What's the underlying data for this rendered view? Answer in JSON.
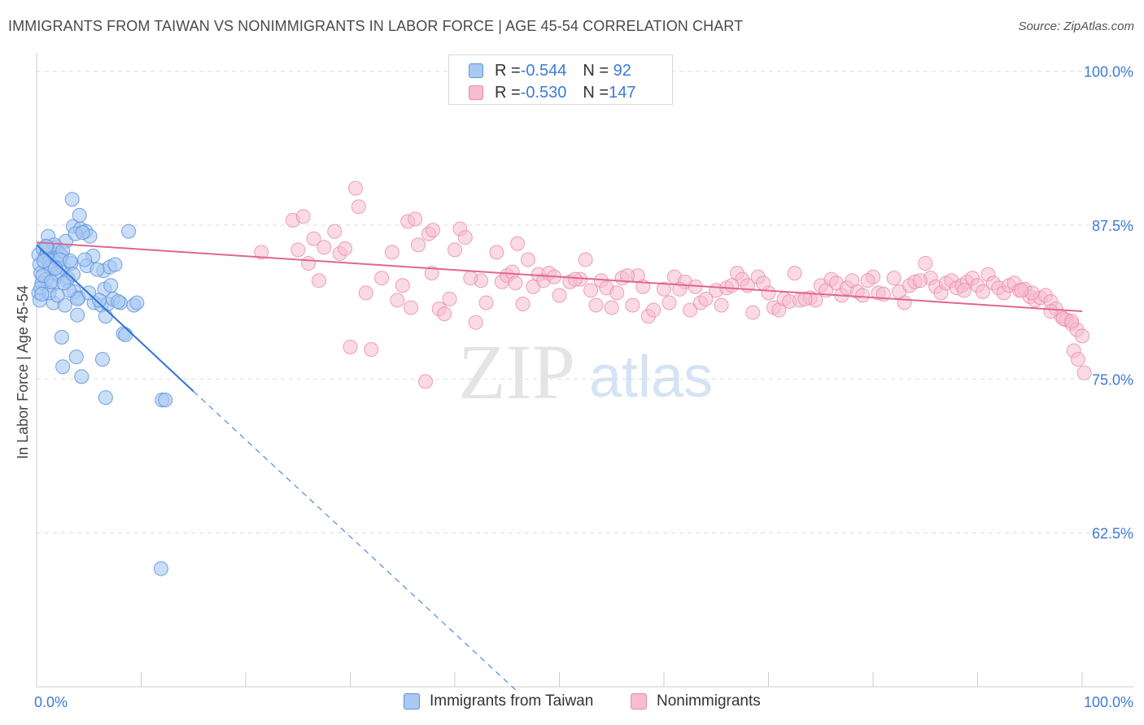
{
  "title": "IMMIGRANTS FROM TAIWAN VS NONIMMIGRANTS IN LABOR FORCE | AGE 45-54 CORRELATION CHART",
  "source": "Source: ZipAtlas.com",
  "watermark": {
    "zip": "ZIP",
    "atlas": "atlas"
  },
  "colors": {
    "blue_fill": "#a9c8f2",
    "blue_stroke": "#5b93dd",
    "blue_line": "#2f74d6",
    "pink_fill": "#f6bcd0",
    "pink_stroke": "#e88aab",
    "pink_line": "#e06690",
    "axis_label": "#3d7bd8"
  },
  "legend": {
    "rows": [
      {
        "r_label": "R = ",
        "r_value": "-0.544",
        "n_label": "N = ",
        "n_value": " 92"
      },
      {
        "r_label": "R = ",
        "r_value": "-0.530",
        "n_label": "N = ",
        "n_value": "147"
      }
    ]
  },
  "bottom_legend": {
    "series1": "Immigrants from Taiwan",
    "series2": "Nonimmigrants"
  },
  "chart_data": {
    "type": "scatter",
    "title": "IMMIGRANTS FROM TAIWAN VS NONIMMIGRANTS IN LABOR FORCE | AGE 45-54 CORRELATION CHART",
    "xlabel": "",
    "ylabel": "In Labor Force | Age 45-54",
    "xlim": [
      0,
      100
    ],
    "ylim": [
      50,
      101.5
    ],
    "x_tick_labels": [
      {
        "value": 0,
        "label": "0.0%"
      },
      {
        "value": 100,
        "label": "100.0%"
      }
    ],
    "y_tick_labels": [
      {
        "value": 100,
        "label": "100.0%"
      },
      {
        "value": 87.5,
        "label": "87.5%"
      },
      {
        "value": 75,
        "label": "75.0%"
      },
      {
        "value": 62.5,
        "label": "62.5%"
      }
    ],
    "x_minor_ticks": [
      0,
      10,
      20,
      30,
      40,
      50,
      60,
      70,
      80,
      90,
      100
    ],
    "series": [
      {
        "name": "Immigrants from Taiwan",
        "color": "blue",
        "r": -0.544,
        "n": 92,
        "trend": {
          "x0": 0,
          "y0": 85.9,
          "x1": 15,
          "y1": 74.0,
          "dash_x1": 46,
          "dash_y1": 49.6
        },
        "points": [
          [
            0.2,
            85.1
          ],
          [
            0.3,
            84.3
          ],
          [
            0.4,
            83.6
          ],
          [
            0.5,
            82.8
          ],
          [
            0.2,
            82.0
          ],
          [
            0.6,
            85.6
          ],
          [
            0.8,
            84.9
          ],
          [
            1.0,
            85.3
          ],
          [
            1.2,
            84.5
          ],
          [
            1.4,
            83.9
          ],
          [
            1.6,
            85.2
          ],
          [
            1.8,
            84.8
          ],
          [
            2.0,
            85.5
          ],
          [
            2.2,
            84.2
          ],
          [
            2.4,
            85.0
          ],
          [
            0.9,
            83.1
          ],
          [
            1.5,
            82.6
          ],
          [
            2.1,
            83.4
          ],
          [
            2.6,
            84.0
          ],
          [
            3.0,
            83.2
          ],
          [
            3.3,
            84.4
          ],
          [
            3.6,
            82.1
          ],
          [
            4.0,
            81.6
          ],
          [
            1.1,
            86.6
          ],
          [
            1.9,
            85.7
          ],
          [
            2.3,
            85.1
          ],
          [
            2.8,
            86.2
          ],
          [
            3.5,
            87.4
          ],
          [
            4.2,
            87.2
          ],
          [
            4.7,
            87.0
          ],
          [
            5.1,
            86.6
          ],
          [
            3.4,
            89.6
          ],
          [
            4.1,
            88.3
          ],
          [
            0.3,
            81.4
          ],
          [
            1.6,
            81.2
          ],
          [
            2.7,
            81.0
          ],
          [
            3.9,
            81.5
          ],
          [
            5.5,
            81.2
          ],
          [
            6.2,
            81.0
          ],
          [
            6.8,
            81.1
          ],
          [
            7.3,
            81.5
          ],
          [
            8.0,
            81.2
          ],
          [
            9.3,
            81.0
          ],
          [
            9.6,
            81.2
          ],
          [
            6.5,
            82.3
          ],
          [
            7.1,
            82.6
          ],
          [
            6.4,
            83.8
          ],
          [
            7.0,
            84.1
          ],
          [
            7.5,
            84.3
          ],
          [
            5.4,
            85.0
          ],
          [
            4.8,
            84.2
          ],
          [
            3.9,
            80.2
          ],
          [
            6.6,
            80.1
          ],
          [
            8.3,
            78.7
          ],
          [
            8.5,
            78.6
          ],
          [
            2.4,
            78.4
          ],
          [
            3.8,
            76.8
          ],
          [
            2.5,
            76.0
          ],
          [
            4.3,
            75.2
          ],
          [
            6.3,
            76.6
          ],
          [
            6.6,
            73.5
          ],
          [
            12.0,
            73.3
          ],
          [
            12.3,
            73.3
          ],
          [
            11.9,
            59.6
          ],
          [
            8.8,
            87.0
          ],
          [
            1.3,
            84.1
          ],
          [
            2.0,
            83.6
          ],
          [
            2.9,
            83.0
          ],
          [
            0.7,
            84.6
          ],
          [
            1.7,
            85.9
          ],
          [
            2.5,
            85.4
          ],
          [
            0.4,
            82.4
          ],
          [
            1.2,
            82.0
          ],
          [
            3.1,
            82.2
          ],
          [
            4.6,
            84.7
          ],
          [
            5.8,
            83.9
          ],
          [
            7.8,
            81.3
          ],
          [
            2.2,
            84.7
          ],
          [
            1.0,
            85.7
          ],
          [
            3.7,
            86.8
          ],
          [
            4.4,
            86.9
          ],
          [
            0.6,
            83.4
          ],
          [
            1.4,
            82.9
          ],
          [
            2.0,
            81.8
          ],
          [
            3.2,
            84.6
          ],
          [
            5.0,
            82.0
          ],
          [
            6.0,
            81.4
          ],
          [
            2.6,
            82.8
          ],
          [
            1.8,
            84.0
          ],
          [
            0.9,
            85.8
          ],
          [
            0.5,
            81.9
          ],
          [
            3.5,
            83.5
          ]
        ]
      },
      {
        "name": "Nonimmigrants",
        "color": "pink",
        "r": -0.53,
        "n": 147,
        "trend": {
          "x0": 0,
          "y0": 86.1,
          "x1": 100,
          "y1": 80.5
        },
        "points": [
          [
            21.5,
            85.3
          ],
          [
            24.5,
            87.9
          ],
          [
            25.5,
            88.2
          ],
          [
            25.0,
            85.5
          ],
          [
            26.0,
            84.4
          ],
          [
            26.5,
            86.4
          ],
          [
            27.0,
            83.0
          ],
          [
            27.5,
            85.7
          ],
          [
            28.5,
            87.0
          ],
          [
            29.0,
            85.2
          ],
          [
            29.5,
            85.6
          ],
          [
            30.0,
            77.6
          ],
          [
            30.5,
            90.5
          ],
          [
            30.8,
            89.0
          ],
          [
            31.5,
            82.0
          ],
          [
            32.0,
            77.4
          ],
          [
            33.0,
            83.2
          ],
          [
            34.0,
            85.3
          ],
          [
            35.0,
            82.6
          ],
          [
            35.5,
            87.8
          ],
          [
            35.8,
            80.8
          ],
          [
            36.2,
            88.0
          ],
          [
            36.5,
            85.9
          ],
          [
            37.5,
            86.8
          ],
          [
            37.9,
            87.1
          ],
          [
            37.2,
            74.8
          ],
          [
            38.5,
            80.7
          ],
          [
            39.0,
            80.3
          ],
          [
            39.5,
            81.5
          ],
          [
            40.0,
            85.5
          ],
          [
            40.5,
            87.2
          ],
          [
            41.0,
            86.5
          ],
          [
            42.0,
            79.6
          ],
          [
            42.5,
            83.0
          ],
          [
            43.0,
            81.2
          ],
          [
            44.0,
            85.3
          ],
          [
            44.5,
            82.9
          ],
          [
            45.0,
            83.4
          ],
          [
            45.5,
            83.7
          ],
          [
            46.0,
            86.0
          ],
          [
            46.5,
            81.1
          ],
          [
            47.0,
            84.7
          ],
          [
            47.5,
            82.5
          ],
          [
            48.0,
            83.5
          ],
          [
            48.5,
            83.0
          ],
          [
            49.0,
            83.6
          ],
          [
            50.0,
            81.8
          ],
          [
            51.0,
            82.9
          ],
          [
            52.0,
            83.1
          ],
          [
            52.5,
            84.7
          ],
          [
            53.0,
            82.2
          ],
          [
            53.5,
            81.0
          ],
          [
            54.0,
            83.0
          ],
          [
            54.5,
            82.4
          ],
          [
            55.0,
            80.8
          ],
          [
            55.5,
            82.0
          ],
          [
            56.0,
            83.2
          ],
          [
            57.0,
            81.0
          ],
          [
            57.5,
            83.4
          ],
          [
            58.0,
            82.5
          ],
          [
            58.5,
            80.1
          ],
          [
            59.0,
            80.6
          ],
          [
            60.0,
            82.3
          ],
          [
            60.5,
            81.2
          ],
          [
            61.0,
            83.3
          ],
          [
            62.0,
            82.9
          ],
          [
            62.5,
            80.6
          ],
          [
            63.0,
            82.5
          ],
          [
            63.5,
            81.2
          ],
          [
            64.0,
            81.5
          ],
          [
            65.0,
            82.2
          ],
          [
            65.5,
            81.0
          ],
          [
            66.0,
            82.4
          ],
          [
            67.0,
            83.6
          ],
          [
            67.5,
            83.1
          ],
          [
            68.0,
            82.6
          ],
          [
            68.5,
            80.4
          ],
          [
            69.0,
            83.3
          ],
          [
            70.0,
            82.0
          ],
          [
            70.5,
            80.8
          ],
          [
            71.0,
            80.6
          ],
          [
            71.5,
            81.5
          ],
          [
            72.0,
            81.3
          ],
          [
            72.5,
            83.6
          ],
          [
            73.0,
            81.4
          ],
          [
            74.0,
            81.6
          ],
          [
            74.5,
            81.4
          ],
          [
            75.0,
            82.6
          ],
          [
            75.5,
            82.2
          ],
          [
            76.0,
            83.1
          ],
          [
            76.5,
            82.8
          ],
          [
            77.0,
            81.8
          ],
          [
            77.5,
            82.4
          ],
          [
            78.0,
            83.0
          ],
          [
            78.5,
            82.1
          ],
          [
            79.0,
            81.8
          ],
          [
            80.0,
            83.3
          ],
          [
            80.5,
            82.0
          ],
          [
            81.0,
            81.9
          ],
          [
            82.0,
            83.2
          ],
          [
            82.5,
            82.1
          ],
          [
            83.0,
            81.2
          ],
          [
            83.5,
            82.6
          ],
          [
            84.0,
            82.9
          ],
          [
            85.0,
            84.4
          ],
          [
            85.5,
            83.2
          ],
          [
            86.0,
            82.5
          ],
          [
            86.5,
            82.0
          ],
          [
            87.0,
            82.8
          ],
          [
            87.5,
            83.0
          ],
          [
            88.0,
            82.4
          ],
          [
            88.5,
            82.6
          ],
          [
            89.0,
            82.9
          ],
          [
            89.5,
            83.2
          ],
          [
            90.0,
            82.6
          ],
          [
            90.5,
            82.1
          ],
          [
            91.0,
            83.5
          ],
          [
            91.5,
            82.8
          ],
          [
            92.0,
            82.4
          ],
          [
            92.5,
            82.0
          ],
          [
            93.0,
            82.6
          ],
          [
            93.5,
            82.8
          ],
          [
            94.0,
            82.2
          ],
          [
            94.5,
            82.3
          ],
          [
            95.0,
            81.7
          ],
          [
            95.5,
            81.4
          ],
          [
            96.0,
            81.6
          ],
          [
            96.5,
            81.8
          ],
          [
            97.0,
            81.3
          ],
          [
            97.5,
            80.7
          ],
          [
            98.0,
            80.1
          ],
          [
            98.5,
            79.8
          ],
          [
            99.0,
            79.5
          ],
          [
            99.5,
            79.0
          ],
          [
            100.0,
            78.5
          ],
          [
            99.2,
            77.3
          ],
          [
            99.6,
            76.6
          ],
          [
            100.2,
            75.5
          ],
          [
            97.0,
            80.5
          ],
          [
            98.2,
            79.9
          ],
          [
            99.0,
            79.7
          ],
          [
            95.2,
            82.0
          ],
          [
            94.2,
            82.2
          ],
          [
            88.7,
            82.2
          ],
          [
            84.5,
            83.0
          ],
          [
            79.5,
            83.0
          ],
          [
            73.5,
            81.5
          ],
          [
            69.5,
            82.8
          ],
          [
            66.5,
            82.6
          ],
          [
            61.5,
            82.3
          ],
          [
            56.5,
            83.4
          ],
          [
            51.5,
            83.1
          ],
          [
            49.5,
            83.3
          ],
          [
            45.8,
            82.8
          ],
          [
            41.5,
            83.2
          ],
          [
            37.8,
            83.6
          ],
          [
            34.5,
            81.4
          ]
        ]
      }
    ]
  }
}
